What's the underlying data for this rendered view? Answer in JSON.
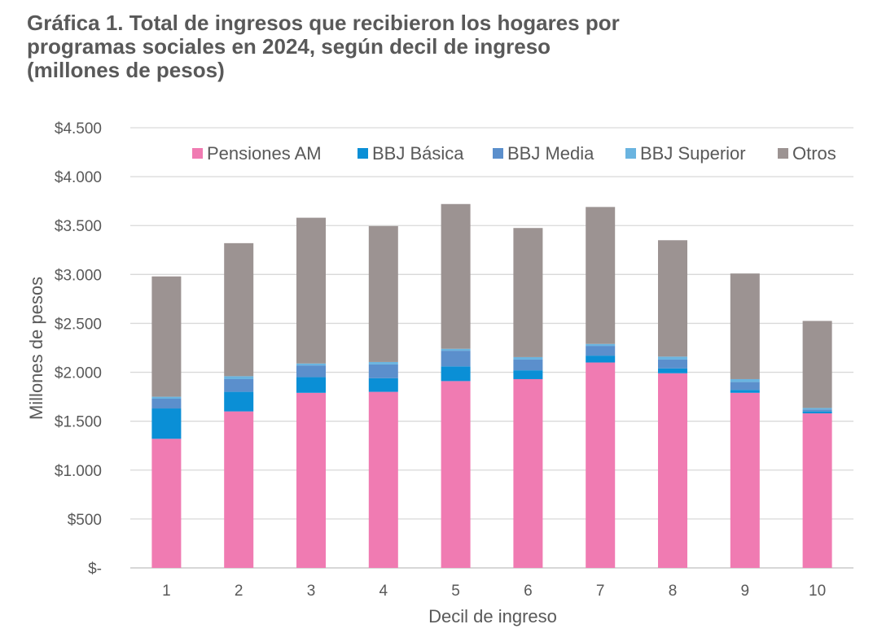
{
  "title_lines": [
    "Gráfica 1. Total de ingresos que recibieron los hogares por",
    "programas sociales en 2024, según decil de ingreso",
    "(millones de pesos)"
  ],
  "chart_data": {
    "type": "bar",
    "stacked": true,
    "title": "Gráfica 1. Total de ingresos que recibieron los hogares por programas sociales en 2024, según decil de ingreso (millones de pesos)",
    "xlabel": "Decil de ingreso",
    "ylabel": "Millones de pesos",
    "ylim": [
      0,
      4500
    ],
    "ytick_values": [
      0,
      500,
      1000,
      1500,
      2000,
      2500,
      3000,
      3500,
      4000,
      4500
    ],
    "ytick_labels": [
      "$-",
      "$500",
      "$1.000",
      "$1.500",
      "$2.000",
      "$2.500",
      "$3.000",
      "$3.500",
      "$4.000",
      "$4.500"
    ],
    "categories": [
      "1",
      "2",
      "3",
      "4",
      "5",
      "6",
      "7",
      "8",
      "9",
      "10"
    ],
    "legend_position": "top-right",
    "grid": true,
    "series": [
      {
        "name": "Pensiones AM",
        "color": "#F07BB2",
        "values": [
          1320,
          1600,
          1790,
          1800,
          1910,
          1930,
          2100,
          1990,
          1790,
          1580
        ]
      },
      {
        "name": "BBJ Básica",
        "color": "#0A8FD6",
        "values": [
          310,
          200,
          160,
          140,
          150,
          90,
          70,
          50,
          30,
          20
        ]
      },
      {
        "name": "BBJ Media",
        "color": "#5B8FCC",
        "values": [
          100,
          130,
          120,
          140,
          160,
          110,
          100,
          90,
          80,
          20
        ]
      },
      {
        "name": "BBJ Superior",
        "color": "#6AB4E0",
        "values": [
          20,
          30,
          20,
          25,
          20,
          25,
          20,
          30,
          30,
          15
        ]
      },
      {
        "name": "Otros",
        "color": "#9C9392",
        "values": [
          1230,
          1360,
          1490,
          1390,
          1480,
          1320,
          1400,
          1190,
          1080,
          890
        ]
      }
    ]
  }
}
